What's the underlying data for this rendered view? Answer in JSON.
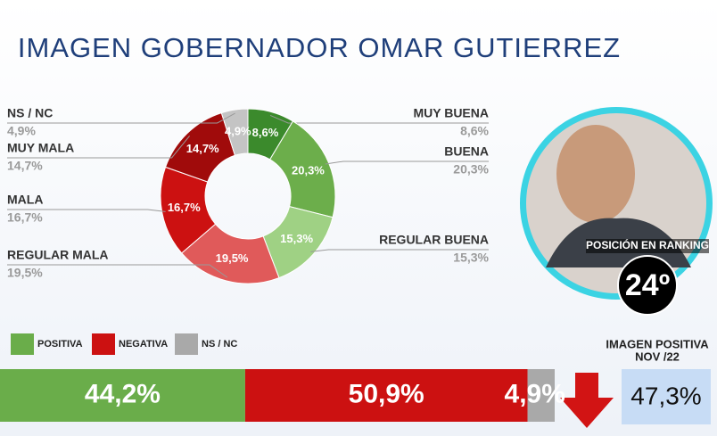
{
  "chart_data": [
    {
      "type": "pie",
      "donut": true,
      "title": "IMAGEN GOBERNADOR OMAR GUTIERREZ",
      "categories": [
        "MUY BUENA",
        "BUENA",
        "REGULAR BUENA",
        "REGULAR MALA",
        "MALA",
        "MUY MALA",
        "NS / NC"
      ],
      "values": [
        8.6,
        20.3,
        15.3,
        19.5,
        16.7,
        14.7,
        4.9
      ],
      "value_labels": [
        "8,6%",
        "20,3%",
        "15,3%",
        "19,5%",
        "16,7%",
        "14,7%",
        "4,9%"
      ],
      "colors": [
        "#3b8a2c",
        "#6cae4b",
        "#9fd184",
        "#e05a5a",
        "#cc1111",
        "#a00b0b",
        "#c4c4c4"
      ]
    },
    {
      "type": "bar",
      "orientation": "horizontal",
      "stacked": true,
      "series": [
        {
          "name": "POSITIVA",
          "color": "#6aad4a",
          "values": [
            44.2
          ],
          "value_labels": [
            "44,2%"
          ]
        },
        {
          "name": "NEGATIVA",
          "color": "#cc1111",
          "values": [
            50.9
          ],
          "value_labels": [
            "50,9%"
          ]
        },
        {
          "name": "NS / NC",
          "color": "#a9a9a9",
          "values": [
            4.9
          ],
          "value_labels": [
            "4,9%"
          ]
        }
      ],
      "xlim": [
        0,
        100
      ]
    }
  ],
  "ranking": {
    "label": "POSICIÓN EN RANKING",
    "value": "24º"
  },
  "imagen_positiva": {
    "title": [
      "IMAGEN POSITIVA",
      "NOV /22"
    ],
    "value": "47,3%"
  }
}
